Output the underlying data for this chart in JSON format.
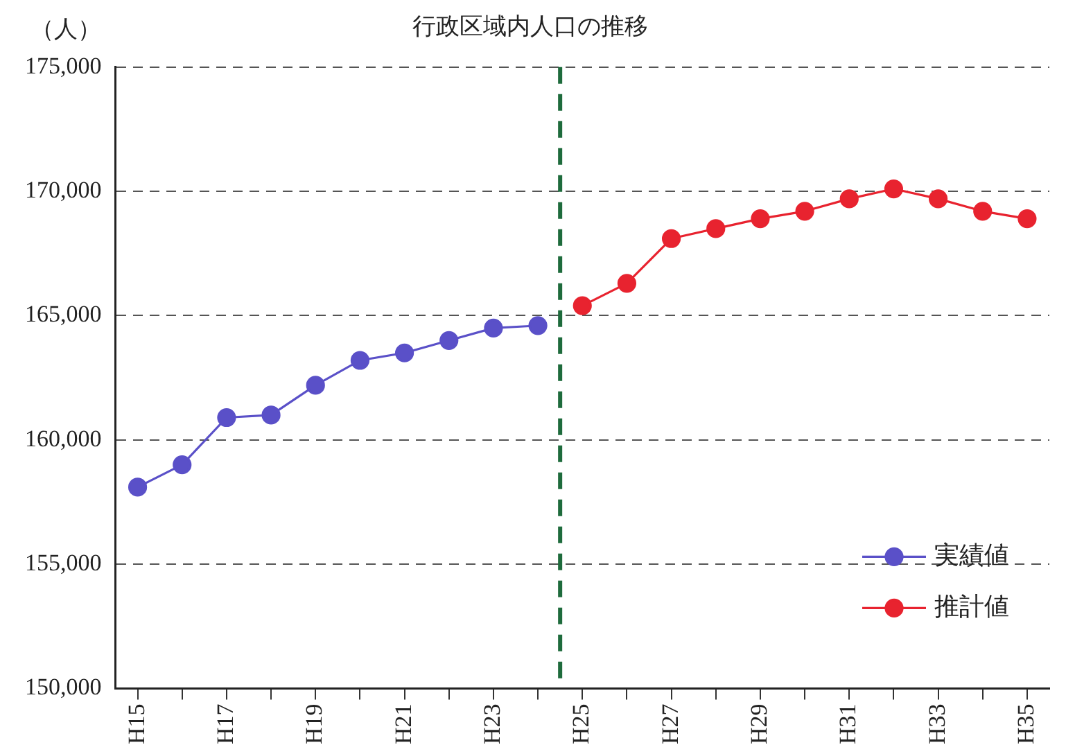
{
  "chart_data": {
    "type": "line",
    "title": "行政区域内人口の推移",
    "ylabel": "（人）",
    "categories": [
      "H15",
      null,
      "H17",
      null,
      "H19",
      null,
      "H21",
      null,
      "H23",
      null,
      "H25",
      null,
      "H27",
      null,
      "H29",
      null,
      "H31",
      null,
      "H33",
      null,
      "H35"
    ],
    "series": [
      {
        "name": "実績値",
        "color": "#5a50c8",
        "values": [
          158100,
          159000,
          160900,
          161000,
          162200,
          163200,
          163500,
          164000,
          164500,
          164600,
          null,
          null,
          null,
          null,
          null,
          null,
          null,
          null,
          null,
          null,
          null
        ]
      },
      {
        "name": "推計値",
        "color": "#e8232f",
        "values": [
          null,
          null,
          null,
          null,
          null,
          null,
          null,
          null,
          null,
          null,
          165400,
          166300,
          168100,
          168500,
          168900,
          169200,
          169700,
          170100,
          169700,
          169200,
          168900
        ]
      }
    ],
    "ylim": [
      150000,
      175000
    ],
    "yticks": [
      {
        "value": 150000,
        "label": "150,000"
      },
      {
        "value": 155000,
        "label": "155,000"
      },
      {
        "value": 160000,
        "label": "160,000"
      },
      {
        "value": 165000,
        "label": "165,000"
      },
      {
        "value": 170000,
        "label": "170,000"
      },
      {
        "value": 175000,
        "label": "175,000"
      }
    ],
    "grid": "y",
    "legend": "bottom right",
    "marker": "circle",
    "line_style": "solid",
    "ref_lines": [
      {
        "axis": "x",
        "value": "H25",
        "color": "#1e6b3c",
        "line_style": "dashed"
      }
    ]
  }
}
